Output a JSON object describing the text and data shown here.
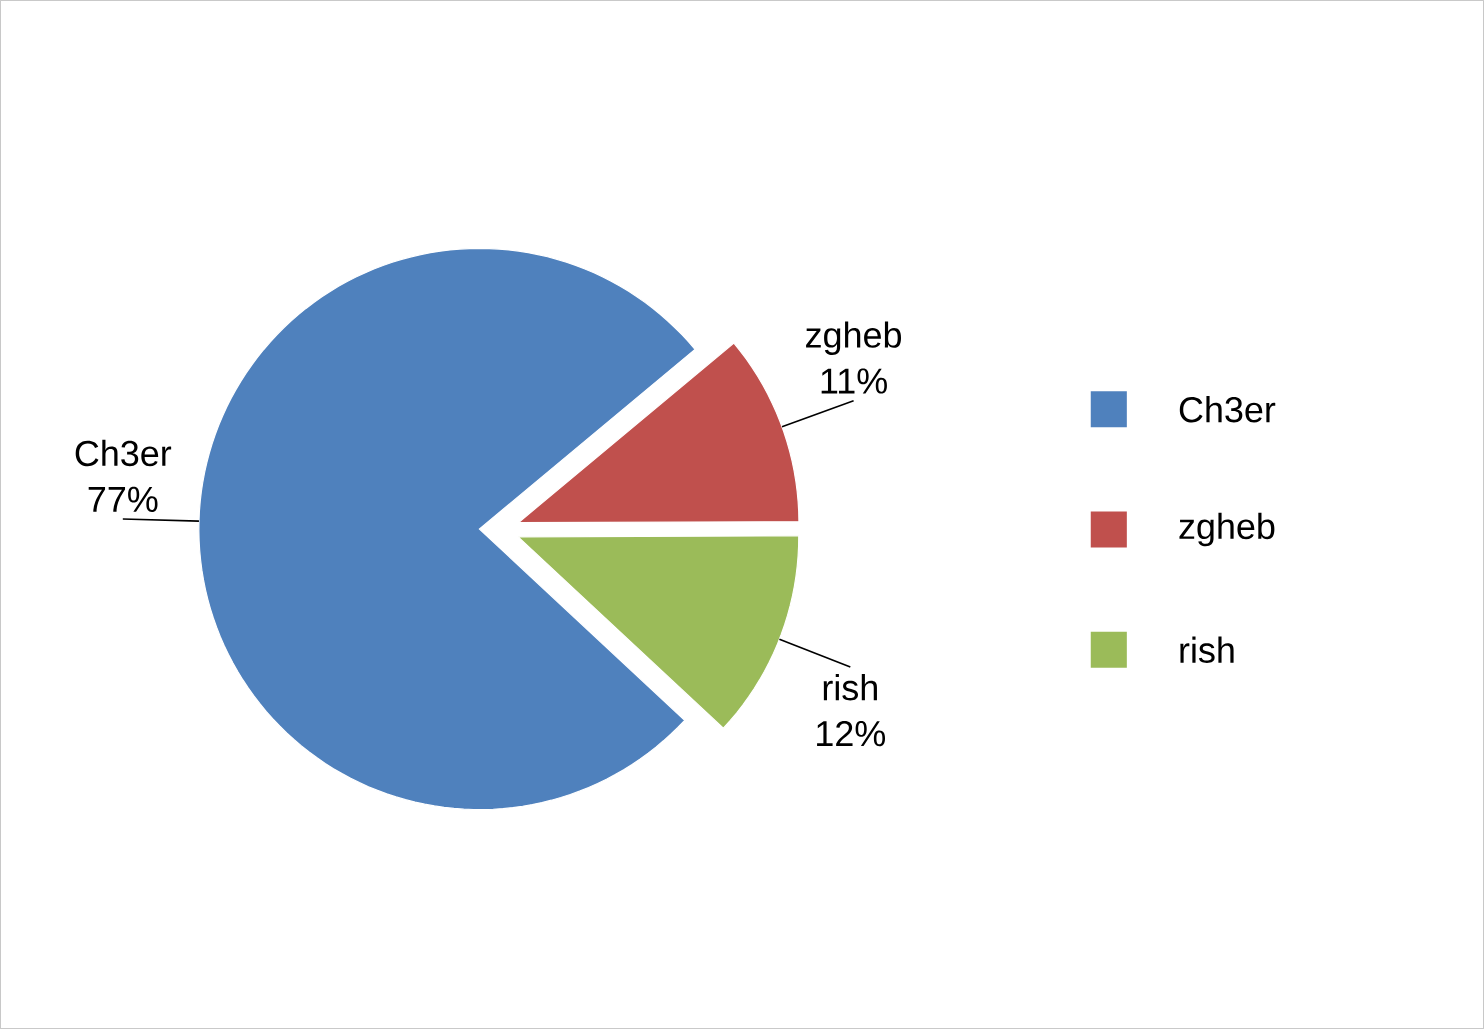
{
  "chart_data": {
    "type": "pie",
    "categories": [
      "Ch3er",
      "zgheb",
      "rish"
    ],
    "values": [
      77,
      11,
      12
    ],
    "value_labels": [
      "77%",
      "11%",
      "12%"
    ],
    "colors": [
      "#4f81bd",
      "#c0504d",
      "#9bbb59"
    ],
    "legend": "right"
  }
}
